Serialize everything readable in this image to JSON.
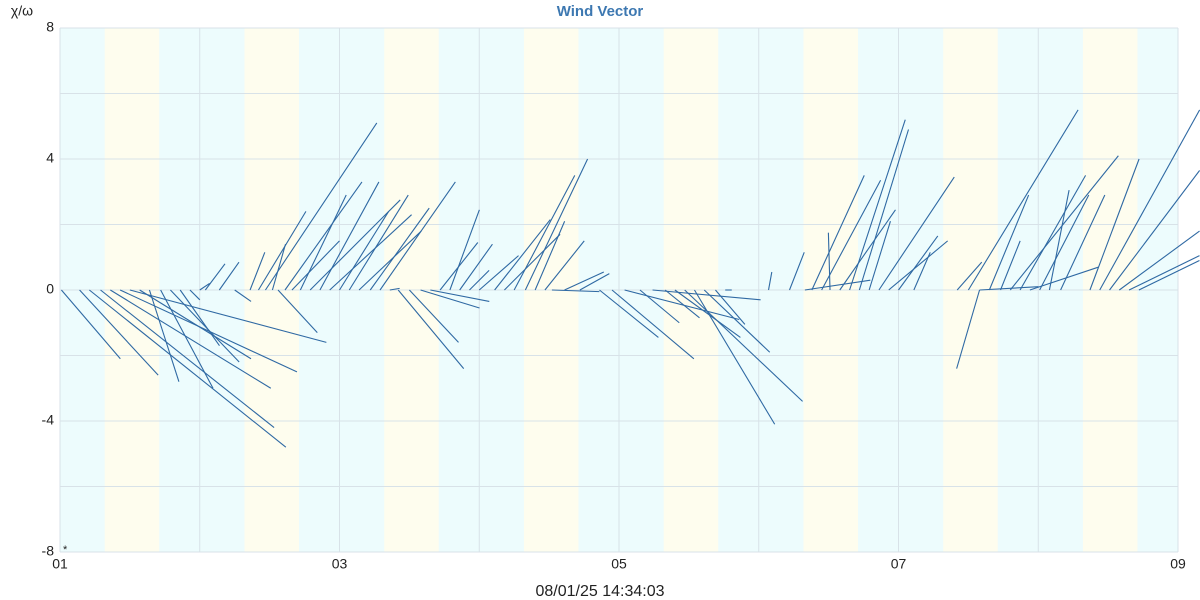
{
  "chart_data": {
    "type": "vector",
    "title": "Wind Vector",
    "y_label": "χ/ω",
    "x_label": "08/01/25 14:34:03",
    "annotation": "*",
    "xlim": [
      1,
      9
    ],
    "xticks": [
      {
        "value": 1,
        "label": "01"
      },
      {
        "value": 3,
        "label": "03"
      },
      {
        "value": 5,
        "label": "05"
      },
      {
        "value": 7,
        "label": "07"
      },
      {
        "value": 9,
        "label": "09"
      }
    ],
    "x_minor_grid": [
      2,
      4,
      6,
      8
    ],
    "ylim": [
      -8,
      8
    ],
    "yticks": [
      -8,
      -4,
      0,
      4,
      8
    ],
    "y_minor_grid": [
      -6,
      -2,
      2,
      6
    ],
    "grid": true,
    "background_color": "#edfcfd",
    "band_color": "#fefdee",
    "bands": [
      [
        1.32,
        1.71
      ],
      [
        2.32,
        2.71
      ],
      [
        3.32,
        3.71
      ],
      [
        4.32,
        4.71
      ],
      [
        5.32,
        5.71
      ],
      [
        6.32,
        6.71
      ],
      [
        7.32,
        7.71
      ],
      [
        8.32,
        8.71
      ]
    ],
    "series": [
      {
        "color": "#2f69a3",
        "x": [
          1.01,
          1.14,
          1.21,
          1.29,
          1.36,
          1.43,
          1.5,
          1.57,
          1.64,
          1.72,
          1.79,
          1.86,
          1.93,
          2.0,
          2.04,
          2.14,
          2.25,
          2.36,
          2.42,
          2.47,
          2.52,
          2.56,
          2.61,
          2.66,
          2.72,
          2.79,
          2.86,
          2.93,
          3.0,
          3.07,
          3.14,
          3.22,
          3.29,
          3.36,
          3.42,
          3.5,
          3.58,
          3.65,
          3.72,
          3.79,
          3.86,
          3.93,
          4.0,
          4.11,
          4.18,
          4.25,
          4.33,
          4.4,
          4.47,
          4.52,
          4.61,
          4.72,
          4.86,
          4.95,
          5.04,
          5.15,
          5.24,
          5.33,
          5.4,
          5.47,
          5.54,
          5.61,
          5.69,
          5.76,
          6.07,
          6.22,
          6.33,
          6.38,
          6.45,
          6.51,
          6.58,
          6.65,
          6.72,
          6.79,
          6.86,
          6.93,
          7.0,
          7.11,
          7.58,
          7.42,
          7.5,
          7.58,
          7.65,
          7.73,
          7.8,
          7.87,
          7.94,
          8.01,
          8.08,
          8.16,
          8.37,
          8.44,
          8.51,
          8.58,
          8.65,
          8.72
        ],
        "u": [
          1.8,
          2.4,
          6.0,
          5.3,
          4.9,
          5.4,
          6.0,
          3.4,
          0.9,
          1.6,
          2.1,
          1.2,
          0.3,
          0.3,
          0.6,
          0.6,
          0.5,
          0.45,
          1.45,
          3.4,
          0.4,
          1.2,
          2.35,
          1.45,
          1.4,
          2.75,
          1.8,
          2.5,
          1.5,
          1.8,
          1.9,
          1.8,
          2.3,
          0.3,
          2.0,
          1.5,
          1.8,
          1.8,
          1.15,
          0.9,
          1.0,
          0.6,
          1.2,
          1.7,
          1.7,
          1.85,
          1.9,
          0.9,
          1.2,
          1.45,
          1.2,
          0.9,
          1.8,
          2.5,
          3.5,
          1.2,
          3.3,
          1.05,
          2.0,
          3.6,
          2.45,
          2.0,
          0.9,
          0.2,
          0.1,
          0.45,
          2.0,
          1.6,
          1.8,
          -0.05,
          1.7,
          1.7,
          1.5,
          0.65,
          2.3,
          1.8,
          1.2,
          0.5,
          -0.7,
          0.75,
          3.35,
          1.8,
          1.2,
          0.6,
          3.3,
          2.0,
          2.1,
          1.5,
          0.6,
          1.35,
          1.5,
          3.05,
          2.75,
          2.45,
          2.15,
          1.85
        ],
        "v": [
          -2.1,
          -2.6,
          -4.8,
          -4.2,
          -3.0,
          -2.5,
          -1.6,
          -2.1,
          -2.8,
          -3.0,
          -2.2,
          -1.7,
          -0.3,
          0.2,
          0.8,
          0.85,
          -0.35,
          1.15,
          2.4,
          5.1,
          1.4,
          -1.3,
          3.3,
          1.5,
          2.9,
          2.75,
          3.3,
          2.3,
          2.4,
          2.9,
          1.8,
          2.5,
          3.3,
          0.05,
          -2.4,
          -1.6,
          -0.55,
          -0.35,
          1.45,
          2.45,
          1.4,
          0.6,
          1.05,
          2.15,
          1.7,
          3.5,
          4.0,
          2.1,
          1.5,
          -0.05,
          0.55,
          0.5,
          -1.45,
          -2.1,
          -0.9,
          -1.0,
          -0.3,
          -0.85,
          -1.45,
          -3.4,
          -4.1,
          -1.9,
          -1.05,
          0,
          0.55,
          1.15,
          0.3,
          3.5,
          3.35,
          1.75,
          2.45,
          5.2,
          4.9,
          2.1,
          3.45,
          1.5,
          1.65,
          1.15,
          -2.4,
          0.85,
          5.5,
          0.1,
          2.9,
          1.5,
          4.1,
          3.5,
          0.7,
          2.9,
          3.05,
          2.9,
          4.0,
          5.5,
          3.65,
          1.8,
          1.05,
          0.9
        ]
      }
    ]
  }
}
